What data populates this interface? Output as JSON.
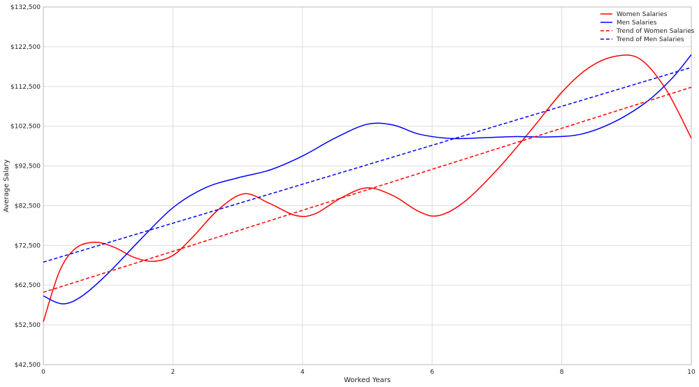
{
  "chart_data": {
    "type": "line",
    "xlabel": "Worked Years",
    "ylabel": "Average Salary",
    "xlim": [
      0,
      10
    ],
    "ylim": [
      42500,
      132500
    ],
    "x_ticks": [
      0,
      2,
      4,
      6,
      8,
      10
    ],
    "x_tick_labels": [
      "0",
      "2",
      "4",
      "6",
      "8",
      "10"
    ],
    "y_ticks": [
      42500,
      52500,
      62500,
      72500,
      82500,
      92500,
      102500,
      112500,
      122500,
      132500
    ],
    "y_tick_labels": [
      "$42,500",
      "$52,500",
      "$62,500",
      "$72,500",
      "$82,500",
      "$92,500",
      "$102,500",
      "$112,500",
      "$122,500",
      "$132,500"
    ],
    "grid": true,
    "legend_position": "top-right",
    "series": [
      {
        "name": "Women Salaries",
        "color": "#ff0000",
        "style": "solid",
        "points": [
          [
            0,
            53300
          ],
          [
            0.25,
            66000
          ],
          [
            0.5,
            71800
          ],
          [
            0.8,
            73300
          ],
          [
            1.1,
            72000
          ],
          [
            1.4,
            69500
          ],
          [
            1.7,
            68500
          ],
          [
            2.0,
            70000
          ],
          [
            2.3,
            74500
          ],
          [
            2.7,
            81500
          ],
          [
            3.1,
            85500
          ],
          [
            3.5,
            83000
          ],
          [
            3.9,
            80000
          ],
          [
            4.2,
            80500
          ],
          [
            4.6,
            84500
          ],
          [
            5.0,
            87000
          ],
          [
            5.4,
            85000
          ],
          [
            5.8,
            81000
          ],
          [
            6.1,
            80000
          ],
          [
            6.5,
            83500
          ],
          [
            7.0,
            91500
          ],
          [
            7.5,
            101000
          ],
          [
            8.0,
            111000
          ],
          [
            8.4,
            117000
          ],
          [
            8.8,
            120000
          ],
          [
            9.2,
            119500
          ],
          [
            9.6,
            112000
          ],
          [
            10.0,
            99500
          ]
        ]
      },
      {
        "name": "Men Salaries",
        "color": "#0000ff",
        "style": "solid",
        "points": [
          [
            0,
            59800
          ],
          [
            0.3,
            57800
          ],
          [
            0.6,
            59800
          ],
          [
            1.0,
            65500
          ],
          [
            1.5,
            74000
          ],
          [
            2.0,
            82000
          ],
          [
            2.5,
            87000
          ],
          [
            3.0,
            89500
          ],
          [
            3.5,
            91500
          ],
          [
            4.0,
            95000
          ],
          [
            4.5,
            99500
          ],
          [
            5.0,
            103000
          ],
          [
            5.4,
            102800
          ],
          [
            5.8,
            100500
          ],
          [
            6.3,
            99400
          ],
          [
            6.8,
            99600
          ],
          [
            7.3,
            99900
          ],
          [
            7.8,
            99800
          ],
          [
            8.3,
            100500
          ],
          [
            8.8,
            103500
          ],
          [
            9.3,
            108500
          ],
          [
            9.7,
            114500
          ],
          [
            10.0,
            120500
          ]
        ]
      },
      {
        "name": "Trend of Women Salaries",
        "color": "#ff0000",
        "style": "dashed",
        "points": [
          [
            0,
            60700
          ],
          [
            10,
            112300
          ]
        ]
      },
      {
        "name": "Trend of Men Salaries",
        "color": "#0000ff",
        "style": "dashed",
        "points": [
          [
            0,
            68300
          ],
          [
            10,
            117300
          ]
        ]
      }
    ]
  }
}
